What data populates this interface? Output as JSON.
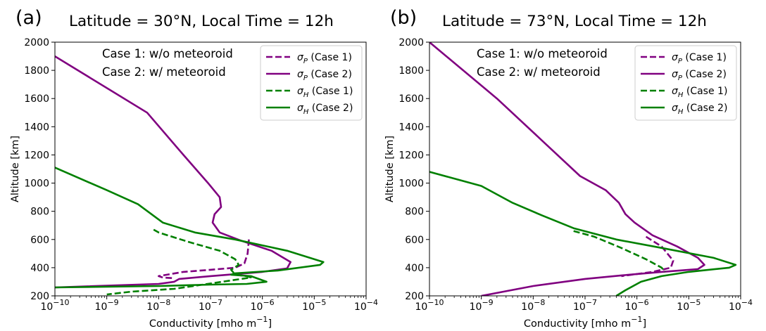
{
  "chart_data": [
    {
      "type": "line",
      "panel_label": "(a)",
      "title": "Latitude = 30°N, Local Time = 12h",
      "xlabel": "Conductivity [mho m⁻¹]",
      "ylabel": "Altitude [km]",
      "xscale": "log",
      "xlim": [
        1e-10,
        0.0001
      ],
      "ylim": [
        200,
        2000
      ],
      "xticks": [
        -10,
        -9,
        -8,
        -7,
        -6,
        -5,
        -4
      ],
      "yticks": [
        200,
        400,
        600,
        800,
        1000,
        1200,
        1400,
        1600,
        1800,
        2000
      ],
      "annotation": [
        "Case 1: w/o meteoroid",
        "Case 2: w/   meteoroid"
      ],
      "legend_position": "top-right",
      "series": [
        {
          "name": "σP (Case 1)",
          "sym": "σ",
          "sub": "P",
          "case": "(Case 1)",
          "color": "#800080",
          "style": "dashed",
          "points": [
            [
              5.5e-07,
              600
            ],
            [
              5.2e-07,
              500
            ],
            [
              4.5e-07,
              430
            ],
            [
              3e-07,
              400
            ],
            [
              1e-07,
              385
            ],
            [
              3e-08,
              370
            ],
            [
              1e-08,
              340
            ],
            [
              1.2e-08,
              330
            ],
            [
              2e-08,
              325
            ]
          ]
        },
        {
          "name": "σP (Case 2)",
          "sym": "σ",
          "sub": "P",
          "case": "(Case 2)",
          "color": "#800080",
          "style": "solid",
          "points": [
            [
              1e-10,
              1900
            ],
            [
              6e-09,
              1500
            ],
            [
              3e-08,
              1200
            ],
            [
              9e-08,
              1000
            ],
            [
              1.5e-07,
              900
            ],
            [
              1.6e-07,
              830
            ],
            [
              1.2e-07,
              780
            ],
            [
              1.1e-07,
              720
            ],
            [
              1.5e-07,
              650
            ],
            [
              4e-07,
              590
            ],
            [
              1.5e-06,
              520
            ],
            [
              3.5e-06,
              440
            ],
            [
              3e-06,
              395
            ],
            [
              1e-06,
              370
            ],
            [
              1e-07,
              340
            ],
            [
              2.5e-08,
              320
            ],
            [
              2e-08,
              300
            ],
            [
              1e-08,
              285
            ],
            [
              1e-10,
              260
            ]
          ]
        },
        {
          "name": "σH (Case 1)",
          "sym": "σ",
          "sub": "H",
          "case": "(Case 1)",
          "color": "#008000",
          "style": "dashed",
          "points": [
            [
              8e-09,
              670
            ],
            [
              1e-08,
              650
            ],
            [
              4e-08,
              580
            ],
            [
              1.5e-07,
              520
            ],
            [
              3e-07,
              460
            ],
            [
              3.5e-07,
              420
            ],
            [
              2.5e-07,
              385
            ],
            [
              3e-07,
              350
            ],
            [
              5e-07,
              340
            ],
            [
              6e-07,
              330
            ],
            [
              2e-08,
              250
            ],
            [
              3e-09,
              230
            ],
            [
              1e-09,
              210
            ]
          ]
        },
        {
          "name": "σH (Case 2)",
          "sym": "σ",
          "sub": "H",
          "case": "(Case 2)",
          "color": "#008000",
          "style": "solid",
          "points": [
            [
              1e-10,
              1110
            ],
            [
              1e-09,
              950
            ],
            [
              4e-09,
              850
            ],
            [
              1.2e-08,
              720
            ],
            [
              5e-08,
              650
            ],
            [
              3e-07,
              600
            ],
            [
              3e-06,
              520
            ],
            [
              1.5e-05,
              440
            ],
            [
              1.3e-05,
              420
            ],
            [
              2e-06,
              380
            ],
            [
              3e-07,
              360
            ],
            [
              2.5e-07,
              350
            ],
            [
              6e-07,
              340
            ],
            [
              1.2e-06,
              300
            ],
            [
              5e-07,
              285
            ],
            [
              1e-07,
              280
            ],
            [
              1e-08,
              270
            ],
            [
              1e-10,
              260
            ]
          ]
        }
      ]
    },
    {
      "type": "line",
      "panel_label": "(b)",
      "title": "Latitude = 73°N, Local Time = 12h",
      "xlabel": "Conductivity [mho m⁻¹]",
      "ylabel": "Altitude [km]",
      "xscale": "log",
      "xlim": [
        1e-10,
        0.0001
      ],
      "ylim": [
        200,
        2000
      ],
      "xticks": [
        -10,
        -9,
        -8,
        -7,
        -6,
        -5,
        -4
      ],
      "yticks": [
        200,
        400,
        600,
        800,
        1000,
        1200,
        1400,
        1600,
        1800,
        2000
      ],
      "annotation": [
        "Case 1: w/o meteoroid",
        "Case 2: w/   meteoroid"
      ],
      "legend_position": "top-right",
      "series": [
        {
          "name": "σP (Case 1)",
          "sym": "σ",
          "sub": "P",
          "case": "(Case 1)",
          "color": "#800080",
          "style": "dashed",
          "points": [
            [
              1.5e-06,
              620
            ],
            [
              3e-06,
              550
            ],
            [
              5e-06,
              450
            ],
            [
              4.5e-06,
              400
            ],
            [
              2e-06,
              370
            ],
            [
              5e-07,
              340
            ]
          ]
        },
        {
          "name": "σP (Case 2)",
          "sym": "σ",
          "sub": "P",
          "case": "(Case 2)",
          "color": "#800080",
          "style": "solid",
          "points": [
            [
              1e-10,
              2000
            ],
            [
              2e-09,
              1600
            ],
            [
              1.5e-08,
              1300
            ],
            [
              8e-08,
              1050
            ],
            [
              2.5e-07,
              950
            ],
            [
              4.5e-07,
              860
            ],
            [
              6e-07,
              780
            ],
            [
              9e-07,
              720
            ],
            [
              2e-06,
              630
            ],
            [
              6e-06,
              550
            ],
            [
              1.5e-05,
              470
            ],
            [
              2e-05,
              420
            ],
            [
              1.5e-05,
              390
            ],
            [
              3e-06,
              370
            ],
            [
              5e-07,
              345
            ],
            [
              1e-07,
              320
            ],
            [
              1e-08,
              270
            ],
            [
              1e-09,
              200
            ]
          ]
        },
        {
          "name": "σH (Case 1)",
          "sym": "σ",
          "sub": "H",
          "case": "(Case 1)",
          "color": "#008000",
          "style": "dashed",
          "points": [
            [
              6e-08,
              660
            ],
            [
              1.5e-07,
              620
            ],
            [
              5e-07,
              540
            ],
            [
              1.5e-06,
              460
            ],
            [
              3e-06,
              400
            ],
            [
              3.5e-06,
              370
            ]
          ]
        },
        {
          "name": "σH (Case 2)",
          "sym": "σ",
          "sub": "H",
          "case": "(Case 2)",
          "color": "#008000",
          "style": "solid",
          "points": [
            [
              1e-10,
              1080
            ],
            [
              1e-09,
              980
            ],
            [
              4e-09,
              860
            ],
            [
              1.5e-08,
              770
            ],
            [
              6e-08,
              680
            ],
            [
              4e-07,
              600
            ],
            [
              3e-06,
              540
            ],
            [
              3e-05,
              470
            ],
            [
              8e-05,
              420
            ],
            [
              6e-05,
              400
            ],
            [
              1e-05,
              370
            ],
            [
              3e-06,
              340
            ],
            [
              1.2e-06,
              300
            ],
            [
              6e-07,
              240
            ],
            [
              4e-07,
              200
            ]
          ]
        }
      ]
    }
  ]
}
